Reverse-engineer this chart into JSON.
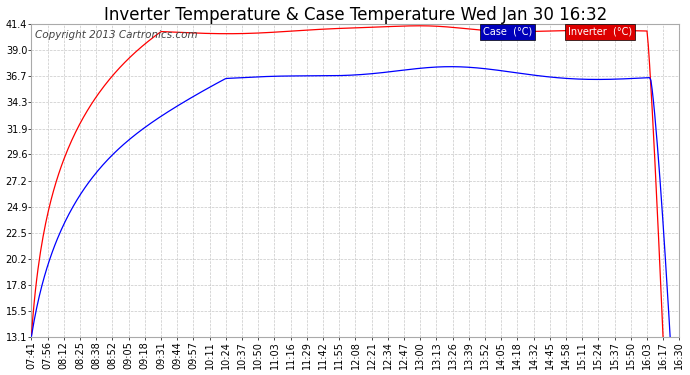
{
  "title": "Inverter Temperature & Case Temperature Wed Jan 30 16:32",
  "copyright": "Copyright 2013 Cartronics.com",
  "background_color": "#ffffff",
  "plot_bg_color": "#ffffff",
  "grid_color": "#c8c8c8",
  "ylim": [
    13.1,
    41.4
  ],
  "yticks": [
    13.1,
    15.5,
    17.8,
    20.2,
    22.5,
    24.9,
    27.2,
    29.6,
    31.9,
    34.3,
    36.7,
    39.0,
    41.4
  ],
  "xtick_labels": [
    "07:41",
    "07:56",
    "08:12",
    "08:25",
    "08:38",
    "08:52",
    "09:05",
    "09:18",
    "09:31",
    "09:44",
    "09:57",
    "10:11",
    "10:24",
    "10:37",
    "10:50",
    "11:03",
    "11:16",
    "11:29",
    "11:42",
    "11:55",
    "12:08",
    "12:21",
    "12:34",
    "12:47",
    "13:00",
    "13:13",
    "13:26",
    "13:39",
    "13:52",
    "14:05",
    "14:18",
    "14:32",
    "14:45",
    "14:58",
    "15:11",
    "15:24",
    "15:37",
    "15:50",
    "16:03",
    "16:17",
    "16:30"
  ],
  "case_color": "#0000ff",
  "inverter_color": "#ff0000",
  "legend_case_bg": "#0000bb",
  "legend_inverter_bg": "#dd0000",
  "title_fontsize": 12,
  "tick_fontsize": 7,
  "copyright_fontsize": 7.5
}
